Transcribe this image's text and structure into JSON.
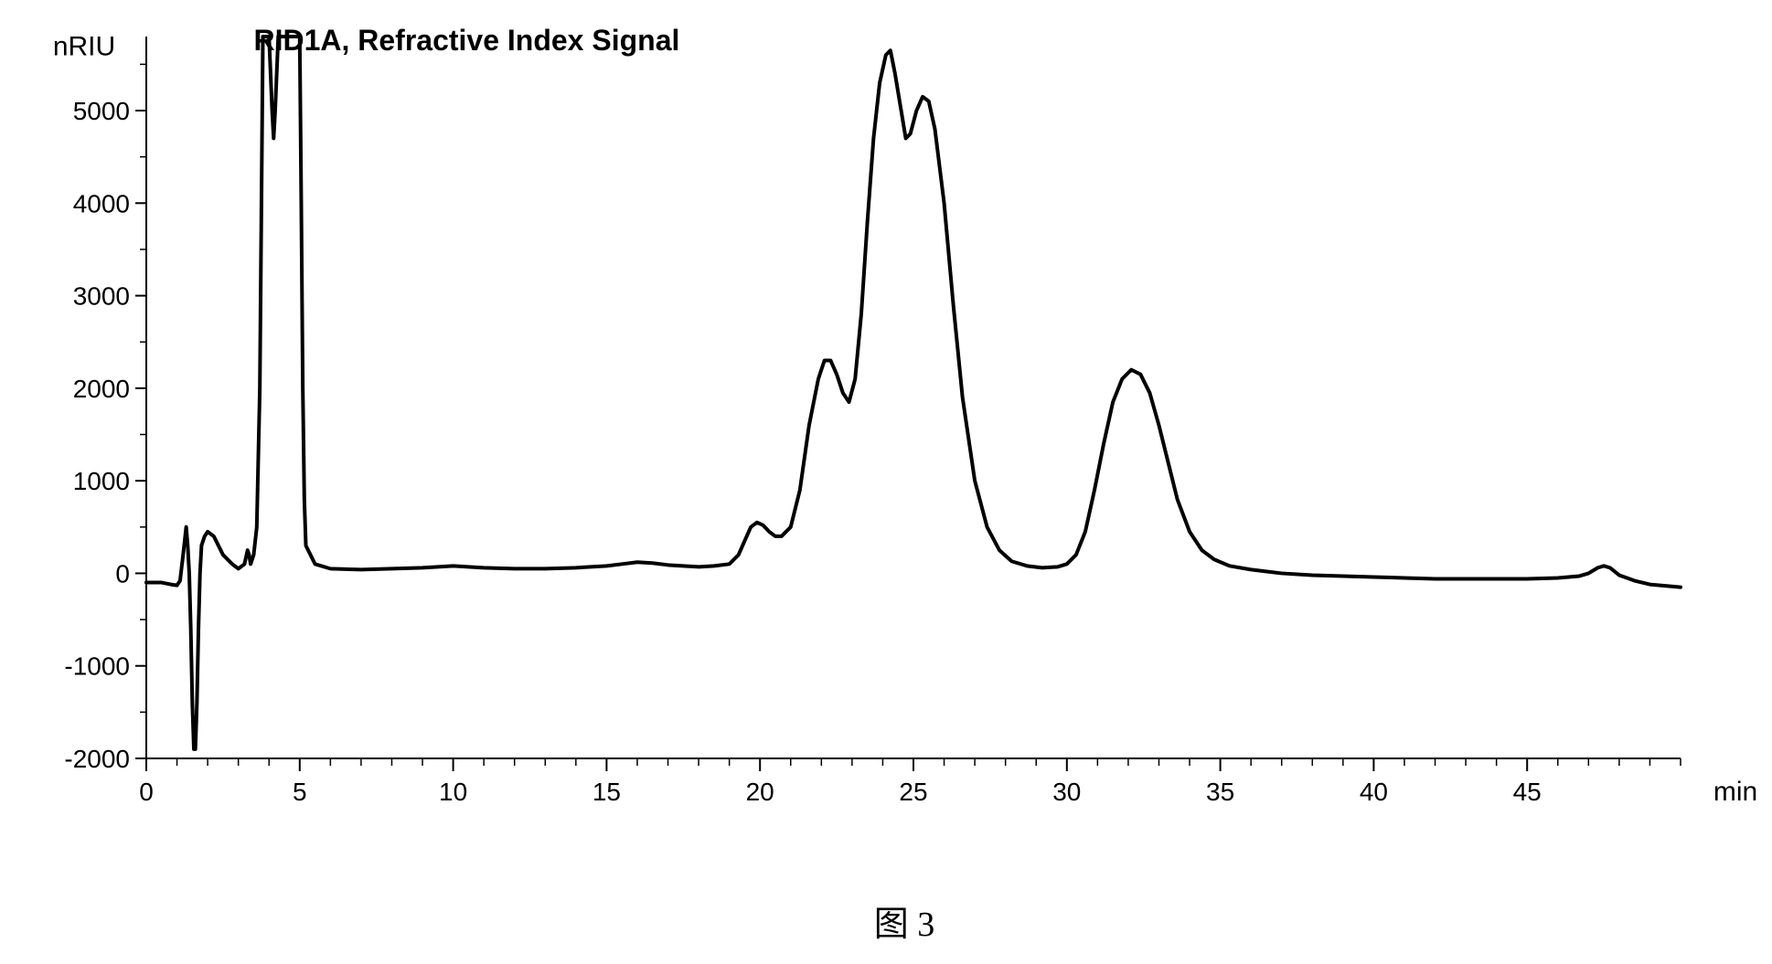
{
  "chart": {
    "type": "line-chromatogram",
    "title": "RID1A, Refractive Index Signal",
    "title_fontsize": 32,
    "title_fontweight": "bold",
    "ylabel": "nRIU",
    "xlabel": "min",
    "label_fontsize": 30,
    "tick_fontsize": 28,
    "background_color": "#ffffff",
    "line_color": "#000000",
    "line_width": 4,
    "axis_color": "#000000",
    "axis_width": 2,
    "xlim": [
      0,
      50
    ],
    "ylim": [
      -2000,
      5800
    ],
    "x_major_ticks": [
      0,
      5,
      10,
      15,
      20,
      25,
      30,
      35,
      40,
      45
    ],
    "x_major_labels": [
      "0",
      "5",
      "10",
      "15",
      "20",
      "25",
      "30",
      "35",
      "40",
      "45"
    ],
    "x_minor_step": 1,
    "y_major_ticks": [
      -2000,
      -1000,
      0,
      1000,
      2000,
      3000,
      4000,
      5000
    ],
    "y_major_labels": [
      "-2000",
      "-1000",
      "0",
      "1000",
      "2000",
      "3000",
      "4000",
      "5000"
    ],
    "y_minor_step": 500,
    "data_points": [
      [
        0.0,
        -100
      ],
      [
        0.5,
        -100
      ],
      [
        0.8,
        -120
      ],
      [
        1.0,
        -130
      ],
      [
        1.1,
        -80
      ],
      [
        1.2,
        200
      ],
      [
        1.3,
        500
      ],
      [
        1.35,
        300
      ],
      [
        1.4,
        0
      ],
      [
        1.45,
        -600
      ],
      [
        1.5,
        -1400
      ],
      [
        1.55,
        -1900
      ],
      [
        1.6,
        -1900
      ],
      [
        1.65,
        -1400
      ],
      [
        1.7,
        -600
      ],
      [
        1.75,
        0
      ],
      [
        1.8,
        300
      ],
      [
        1.9,
        400
      ],
      [
        2.0,
        450
      ],
      [
        2.2,
        400
      ],
      [
        2.5,
        200
      ],
      [
        2.8,
        100
      ],
      [
        3.0,
        50
      ],
      [
        3.2,
        100
      ],
      [
        3.3,
        250
      ],
      [
        3.35,
        200
      ],
      [
        3.4,
        100
      ],
      [
        3.5,
        200
      ],
      [
        3.6,
        500
      ],
      [
        3.7,
        2000
      ],
      [
        3.8,
        5800
      ],
      [
        3.9,
        5800
      ],
      [
        4.0,
        5800
      ],
      [
        4.1,
        5000
      ],
      [
        4.15,
        4700
      ],
      [
        4.2,
        5000
      ],
      [
        4.3,
        5800
      ],
      [
        4.4,
        5800
      ],
      [
        4.8,
        5800
      ],
      [
        5.0,
        5800
      ],
      [
        5.05,
        4000
      ],
      [
        5.1,
        2000
      ],
      [
        5.15,
        800
      ],
      [
        5.2,
        300
      ],
      [
        5.5,
        100
      ],
      [
        6.0,
        50
      ],
      [
        7.0,
        40
      ],
      [
        8.0,
        50
      ],
      [
        9.0,
        60
      ],
      [
        10.0,
        80
      ],
      [
        11.0,
        60
      ],
      [
        12.0,
        50
      ],
      [
        13.0,
        50
      ],
      [
        14.0,
        60
      ],
      [
        15.0,
        80
      ],
      [
        15.5,
        100
      ],
      [
        16.0,
        120
      ],
      [
        16.5,
        110
      ],
      [
        17.0,
        90
      ],
      [
        17.5,
        80
      ],
      [
        18.0,
        70
      ],
      [
        18.5,
        80
      ],
      [
        19.0,
        100
      ],
      [
        19.3,
        200
      ],
      [
        19.5,
        350
      ],
      [
        19.7,
        500
      ],
      [
        19.9,
        550
      ],
      [
        20.1,
        520
      ],
      [
        20.3,
        450
      ],
      [
        20.5,
        400
      ],
      [
        20.7,
        400
      ],
      [
        21.0,
        500
      ],
      [
        21.3,
        900
      ],
      [
        21.6,
        1600
      ],
      [
        21.9,
        2100
      ],
      [
        22.1,
        2300
      ],
      [
        22.3,
        2300
      ],
      [
        22.5,
        2150
      ],
      [
        22.7,
        1950
      ],
      [
        22.9,
        1850
      ],
      [
        23.1,
        2100
      ],
      [
        23.3,
        2800
      ],
      [
        23.5,
        3800
      ],
      [
        23.7,
        4700
      ],
      [
        23.9,
        5300
      ],
      [
        24.1,
        5600
      ],
      [
        24.25,
        5650
      ],
      [
        24.4,
        5400
      ],
      [
        24.6,
        5000
      ],
      [
        24.75,
        4700
      ],
      [
        24.9,
        4750
      ],
      [
        25.1,
        5000
      ],
      [
        25.3,
        5150
      ],
      [
        25.5,
        5100
      ],
      [
        25.7,
        4800
      ],
      [
        26.0,
        4000
      ],
      [
        26.3,
        2900
      ],
      [
        26.6,
        1900
      ],
      [
        27.0,
        1000
      ],
      [
        27.4,
        500
      ],
      [
        27.8,
        250
      ],
      [
        28.2,
        130
      ],
      [
        28.7,
        80
      ],
      [
        29.2,
        60
      ],
      [
        29.7,
        70
      ],
      [
        30.0,
        100
      ],
      [
        30.3,
        200
      ],
      [
        30.6,
        450
      ],
      [
        30.9,
        900
      ],
      [
        31.2,
        1400
      ],
      [
        31.5,
        1850
      ],
      [
        31.8,
        2100
      ],
      [
        32.1,
        2200
      ],
      [
        32.4,
        2150
      ],
      [
        32.7,
        1950
      ],
      [
        33.0,
        1600
      ],
      [
        33.3,
        1200
      ],
      [
        33.6,
        800
      ],
      [
        34.0,
        450
      ],
      [
        34.4,
        250
      ],
      [
        34.8,
        150
      ],
      [
        35.3,
        80
      ],
      [
        36.0,
        40
      ],
      [
        37.0,
        0
      ],
      [
        38.0,
        -20
      ],
      [
        39.0,
        -30
      ],
      [
        40.0,
        -40
      ],
      [
        41.0,
        -50
      ],
      [
        42.0,
        -60
      ],
      [
        43.0,
        -60
      ],
      [
        44.0,
        -60
      ],
      [
        45.0,
        -60
      ],
      [
        46.0,
        -50
      ],
      [
        46.7,
        -30
      ],
      [
        47.0,
        0
      ],
      [
        47.3,
        60
      ],
      [
        47.5,
        80
      ],
      [
        47.7,
        60
      ],
      [
        48.0,
        -20
      ],
      [
        48.5,
        -80
      ],
      [
        49.0,
        -120
      ],
      [
        50.0,
        -150
      ]
    ]
  },
  "caption": "图 3"
}
